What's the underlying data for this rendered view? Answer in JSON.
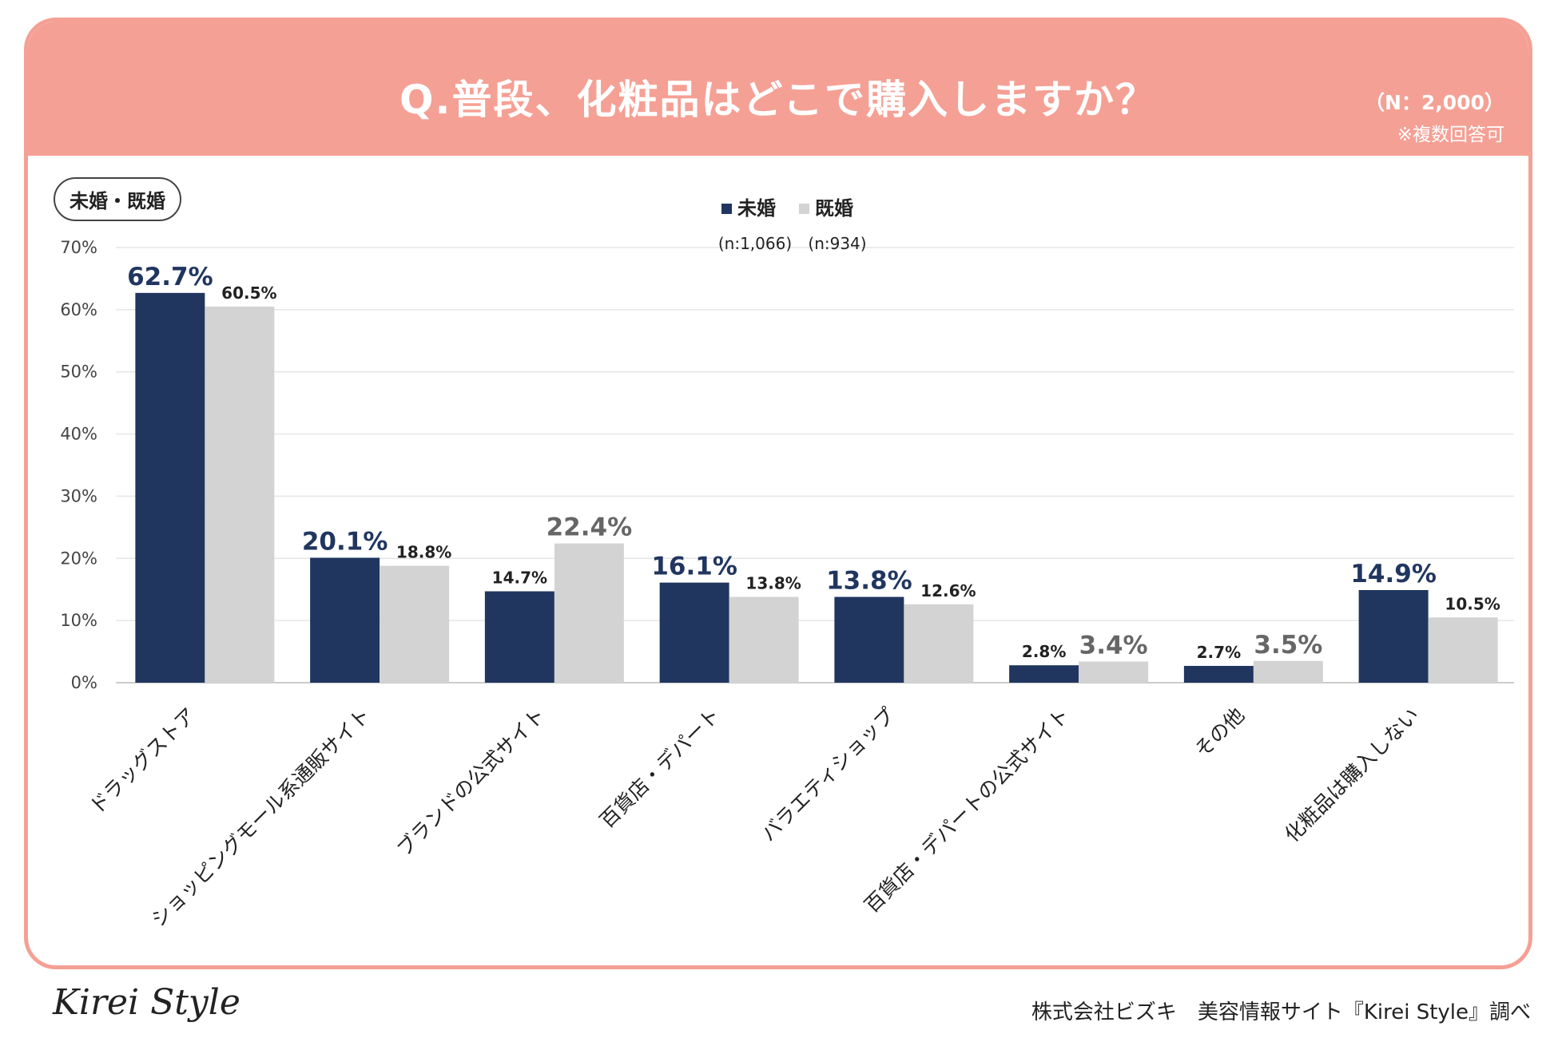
{
  "header": {
    "title": "Q.普段、化粧品はどこで購入しますか？",
    "sample": "（N：2,000）",
    "note": "※複数回答可"
  },
  "segment_label": "未婚・既婚",
  "footer": {
    "logo": "Kirei Style",
    "credit": "株式会社ビズキ　美容情報サイト『Kirei Style』調べ"
  },
  "colors": {
    "header": "#f5a095",
    "unmarried": "#20365f",
    "married": "#d3d3d3"
  },
  "chart_data": {
    "type": "bar",
    "ylim": [
      0,
      70
    ],
    "yticks": [
      "0%",
      "10%",
      "20%",
      "30%",
      "40%",
      "50%",
      "60%",
      "70%"
    ],
    "categories": [
      "ドラッグストア",
      "ショッピングモール系通販サイト",
      "ブランドの公式サイト",
      "百貨店・デパート",
      "バラエティショップ",
      "百貨店・デパートの公式サイト",
      "その他",
      "化粧品は購入しない"
    ],
    "series": [
      {
        "name": "未婚",
        "n": "(n:1,066)",
        "values": [
          62.7,
          20.1,
          14.7,
          16.1,
          13.8,
          2.8,
          2.7,
          14.9
        ],
        "labels": [
          "62.7%",
          "20.1%",
          "14.7%",
          "16.1%",
          "13.8%",
          "2.8%",
          "2.7%",
          "14.9%"
        ]
      },
      {
        "name": "既婚",
        "n": "(n:934)",
        "values": [
          60.5,
          18.8,
          22.4,
          13.8,
          12.6,
          3.4,
          3.5,
          10.5
        ],
        "labels": [
          "60.5%",
          "18.8%",
          "22.4%",
          "13.8%",
          "12.6%",
          "3.4%",
          "3.5%",
          "10.5%"
        ]
      }
    ]
  }
}
